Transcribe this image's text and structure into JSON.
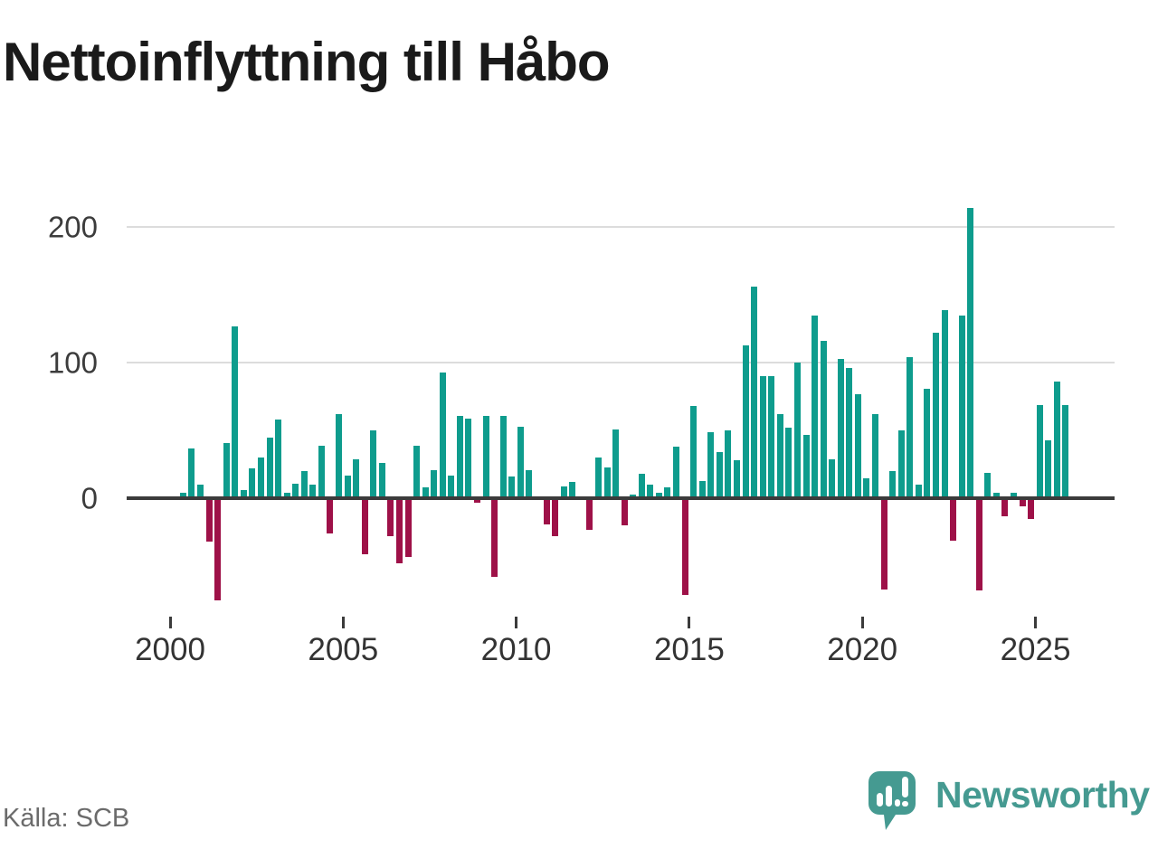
{
  "title": "Nettoinflyttning till Håbo",
  "source": "Källa: SCB",
  "branding": {
    "logo_text": "Newsworthy",
    "logo_icon": "newsworthy-speech-bubble-bar-chart-icon"
  },
  "colors": {
    "positive_bar": "#0e9c8d",
    "negative_bar": "#9e1148",
    "gridline": "#dcdcdc",
    "zero_line": "#3b3b3b",
    "axis_text": "#3c3c3c",
    "x_label_text": "#333333",
    "title_text": "#1a1a1a",
    "source_text": "#6b6b6b",
    "brand_teal": "#459a91"
  },
  "chart_data": {
    "type": "bar",
    "title": "Nettoinflyttning till Håbo",
    "xlabel": "",
    "ylabel": "",
    "frequency": "quarterly",
    "start_period": "2000 Q1",
    "end_period": "2025 Q4",
    "values": [
      0,
      4,
      37,
      10,
      -32,
      -75,
      41,
      127,
      6,
      22,
      30,
      45,
      58,
      4,
      11,
      20,
      10,
      39,
      -26,
      62,
      17,
      29,
      -41,
      50,
      26,
      -28,
      -48,
      -43,
      39,
      8,
      21,
      93,
      17,
      61,
      59,
      -3,
      61,
      -58,
      61,
      16,
      53,
      21,
      0,
      -19,
      -28,
      9,
      12,
      0,
      -23,
      30,
      23,
      51,
      -20,
      3,
      18,
      10,
      4,
      8,
      38,
      -71,
      68,
      13,
      49,
      34,
      50,
      28,
      113,
      156,
      90,
      90,
      62,
      52,
      100,
      47,
      135,
      116,
      29,
      103,
      96,
      77,
      15,
      62,
      -67,
      20,
      50,
      104,
      10,
      81,
      122,
      139,
      -31,
      135,
      214,
      -68,
      19,
      4,
      -13,
      4,
      -6,
      -15,
      69,
      43,
      86,
      69
    ],
    "x_tick_labels": [
      "2000",
      "2005",
      "2010",
      "2015",
      "2020",
      "2025"
    ],
    "y_ticks": [
      0,
      100,
      200
    ],
    "ylim": [
      -85,
      220
    ],
    "grid": "horizontal",
    "legend": "none",
    "bar_color_rule": "positive values teal, negative values dark red"
  }
}
